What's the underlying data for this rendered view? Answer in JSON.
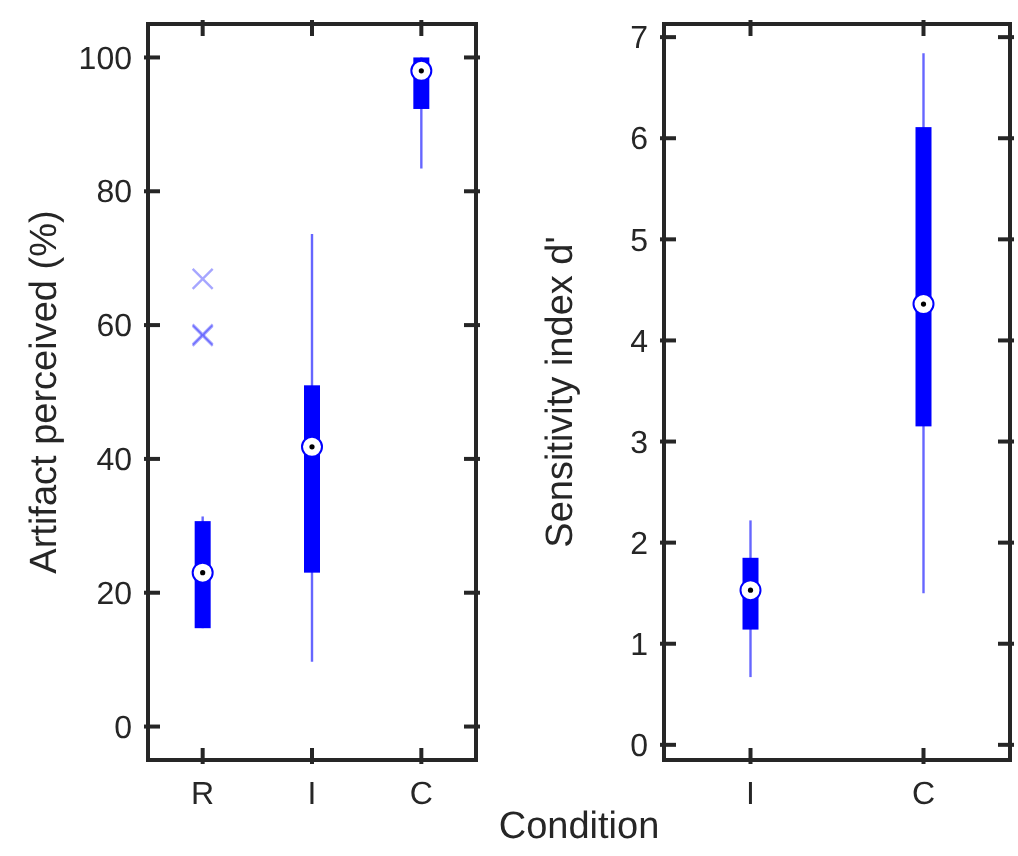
{
  "chart_data": [
    {
      "type": "box",
      "ylabel": "Artifact perceived (%)",
      "xlabel": "Condition",
      "categories": [
        "R",
        "I",
        "C"
      ],
      "color": "#0000ff",
      "ylim": [
        -5,
        105
      ],
      "yticks": [
        0,
        20,
        40,
        60,
        80,
        100
      ],
      "grid": false,
      "boxes": [
        {
          "low": 14.7,
          "q1": 14.7,
          "median": 23,
          "q3": 30.7,
          "high": 31.4,
          "outliers": [
            66.9,
            58.4,
            58.6
          ]
        },
        {
          "low": 9.7,
          "q1": 23,
          "median": 41.8,
          "q3": 51,
          "high": 73.6
        },
        {
          "low": 83.4,
          "q1": 92.3,
          "median": 98,
          "q3": 100,
          "high": 100
        }
      ]
    },
    {
      "type": "box",
      "ylabel": "Sensitivity index d'",
      "categories": [
        "I",
        "C"
      ],
      "color": "#0000ff",
      "ylim": [
        -0.15,
        7.13
      ],
      "yticks": [
        0,
        1,
        2,
        3,
        4,
        5,
        6,
        7
      ],
      "grid": false,
      "boxes": [
        {
          "low": 0.67,
          "q1": 1.14,
          "median": 1.53,
          "q3": 1.85,
          "high": 2.22
        },
        {
          "low": 1.5,
          "q1": 3.15,
          "median": 4.36,
          "q3": 6.11,
          "high": 6.84
        }
      ]
    }
  ]
}
